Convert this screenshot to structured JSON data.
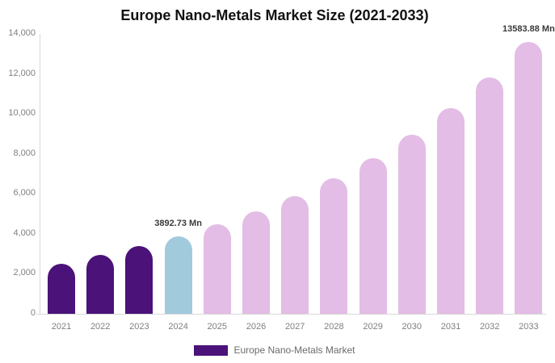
{
  "title": "Europe Nano-Metals Market Size (2021-2033)",
  "legend": {
    "label": "Europe Nano-Metals Market",
    "swatch_color": "#4B1279"
  },
  "colors": {
    "historical_bar": "#4B1279",
    "base_year_bar": "#A2CADD",
    "forecast_bar": "#E3BDE5",
    "axis_line": "#d9d9d9",
    "tick_text": "#7f7f7f",
    "annotation_text": "#3a3a3a"
  },
  "chart_data": {
    "type": "bar",
    "title": "Europe Nano-Metals Market Size (2021-2033)",
    "categories": [
      "2021",
      "2022",
      "2023",
      "2024",
      "2025",
      "2026",
      "2027",
      "2028",
      "2029",
      "2030",
      "2031",
      "2032",
      "2033"
    ],
    "values": [
      2520,
      2950,
      3380,
      3892.73,
      4470,
      5140,
      5900,
      6780,
      7790,
      8960,
      10290,
      11820,
      13583.88
    ],
    "bar_colors": [
      "#4B1279",
      "#4B1279",
      "#4B1279",
      "#A2CADD",
      "#E3BDE5",
      "#E3BDE5",
      "#E3BDE5",
      "#E3BDE5",
      "#E3BDE5",
      "#E3BDE5",
      "#E3BDE5",
      "#E3BDE5",
      "#E3BDE5"
    ],
    "unit": "Mn",
    "xlabel": "",
    "ylabel": "",
    "ylim": [
      0,
      14000
    ],
    "ytick_step": 2000,
    "ytick_labels": [
      "0",
      "2,000",
      "4,000",
      "6,000",
      "8,000",
      "10,000",
      "12,000",
      "14,000"
    ],
    "grid": false,
    "legend_position": "bottom",
    "annotations": [
      {
        "category": "2024",
        "text": "3892.73 Mn"
      },
      {
        "category": "2033",
        "text": "13583.88 Mn"
      }
    ]
  }
}
